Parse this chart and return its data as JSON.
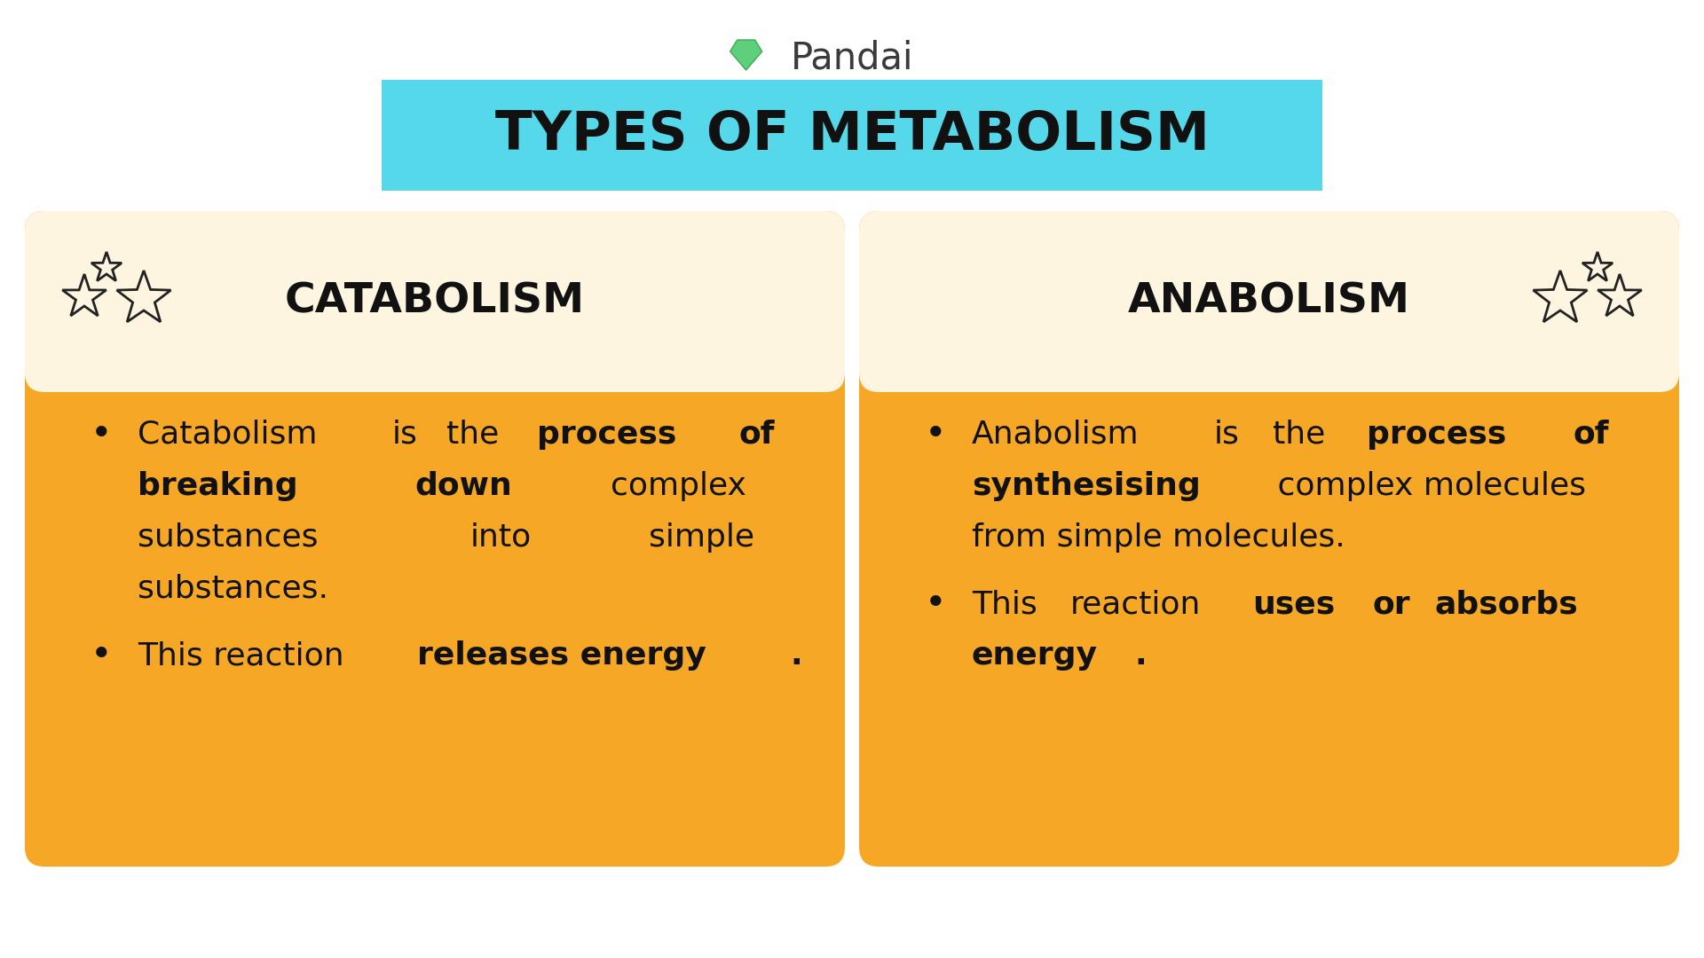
{
  "bg_color": "#ffffff",
  "title_bg_color": "#55d8ea",
  "title_text": "TYPES OF METABOLISM",
  "title_color": "#111111",
  "pandai_text": "Pandai",
  "card_header_bg": "#fdf5df",
  "card_body_bg": "#f5a725",
  "left_title": "CATABOLISM",
  "right_title": "ANABOLISM",
  "text_color": "#111111",
  "header_text_color": "#111111",
  "bullet_fontsize": 26,
  "header_fontsize": 34,
  "pandai_fontsize": 30,
  "title_fontsize": 44
}
